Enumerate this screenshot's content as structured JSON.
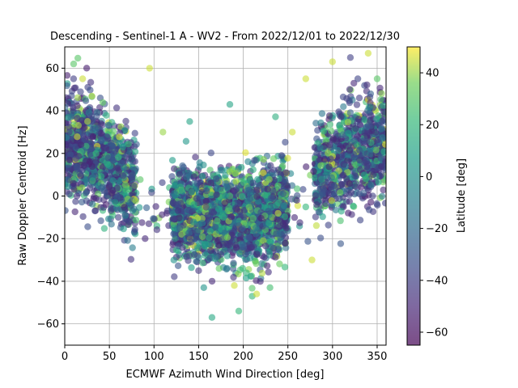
{
  "chart_data": {
    "type": "scatter",
    "title": "Descending - Sentinel-1 A - WV2 - From 2022/12/01 to 2022/12/30",
    "xlabel": "ECMWF Azimuth Wind Direction [deg]",
    "ylabel": "Raw Doppler Centroid [Hz]",
    "xlim": [
      0,
      360
    ],
    "ylim": [
      -70,
      70
    ],
    "xticks": [
      0,
      50,
      100,
      150,
      200,
      250,
      300,
      350
    ],
    "yticks": [
      -60,
      -40,
      -20,
      0,
      20,
      40,
      60
    ],
    "grid": true,
    "marker_alpha": 0.6,
    "colormap": "viridis",
    "colorbar": {
      "label": "Latitude [deg]",
      "range": [
        -65,
        50
      ],
      "ticks": [
        -60,
        -40,
        -20,
        0,
        20,
        40
      ]
    },
    "trend": {
      "description_values": "approximately cosine-shaped distribution",
      "x": [
        0,
        30,
        60,
        90,
        120,
        150,
        180,
        210,
        240,
        270,
        300,
        330,
        360
      ],
      "y_center": [
        24,
        20,
        10,
        -2,
        -8,
        -8,
        -10,
        -10,
        -6,
        4,
        14,
        22,
        24
      ],
      "y_spread": [
        14,
        14,
        14,
        14,
        12,
        12,
        12,
        12,
        12,
        14,
        14,
        14,
        14
      ]
    },
    "sample_points": [
      {
        "x": 5,
        "y": 30,
        "lat": -40
      },
      {
        "x": 10,
        "y": 62,
        "lat": 30
      },
      {
        "x": 20,
        "y": 55,
        "lat": 45
      },
      {
        "x": 35,
        "y": 20,
        "lat": 20
      },
      {
        "x": 50,
        "y": 5,
        "lat": -45
      },
      {
        "x": 60,
        "y": -10,
        "lat": -40
      },
      {
        "x": 90,
        "y": -20,
        "lat": -50
      },
      {
        "x": 95,
        "y": 60,
        "lat": 45
      },
      {
        "x": 110,
        "y": 30,
        "lat": 40
      },
      {
        "x": 140,
        "y": 35,
        "lat": 10
      },
      {
        "x": 150,
        "y": -35,
        "lat": -45
      },
      {
        "x": 165,
        "y": -40,
        "lat": -50
      },
      {
        "x": 180,
        "y": 0,
        "lat": 0
      },
      {
        "x": 185,
        "y": 43,
        "lat": 10
      },
      {
        "x": 190,
        "y": -42,
        "lat": 45
      },
      {
        "x": 195,
        "y": -54,
        "lat": 20
      },
      {
        "x": 210,
        "y": -47,
        "lat": 20
      },
      {
        "x": 215,
        "y": -46,
        "lat": 45
      },
      {
        "x": 230,
        "y": -43,
        "lat": 25
      },
      {
        "x": 255,
        "y": 30,
        "lat": 45
      },
      {
        "x": 270,
        "y": 55,
        "lat": 45
      },
      {
        "x": 277,
        "y": -30,
        "lat": 45
      },
      {
        "x": 300,
        "y": 63,
        "lat": 45
      },
      {
        "x": 320,
        "y": 65,
        "lat": -40
      },
      {
        "x": 340,
        "y": 67,
        "lat": 45
      },
      {
        "x": 350,
        "y": 55,
        "lat": 30
      },
      {
        "x": 345,
        "y": 0,
        "lat": -40
      },
      {
        "x": 355,
        "y": 10,
        "lat": -40
      }
    ]
  }
}
